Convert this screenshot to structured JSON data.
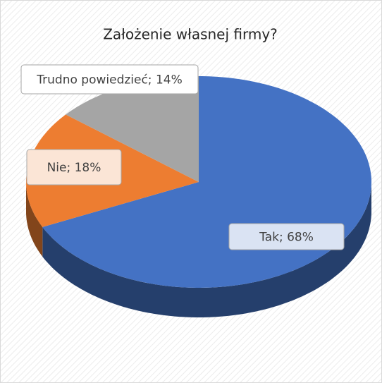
{
  "chart_data": {
    "type": "pie3d",
    "title": "Założenie własnej firmy?",
    "values": [
      68,
      18,
      14
    ],
    "value_labels": [
      "Tak; 68%",
      "Nie; 18%",
      "Trudno powiedzieć; 14%"
    ],
    "colors": [
      "#4472c4",
      "#ed7d31",
      "#a5a5a5"
    ]
  }
}
